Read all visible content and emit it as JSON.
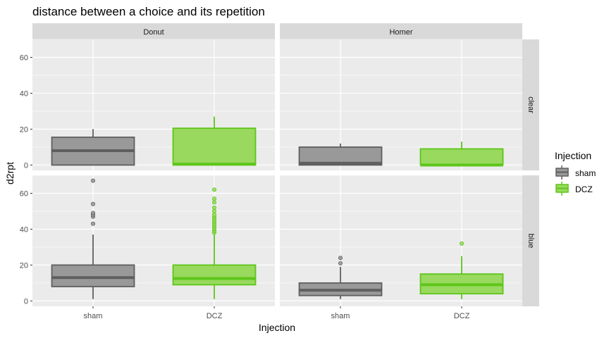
{
  "chart_data": {
    "type": "boxplot",
    "title": "distance between a choice and its repetition",
    "xlabel": "Injection",
    "ylabel": "d2rpt",
    "categories": [
      "sham",
      "DCZ"
    ],
    "ylim": [
      -3,
      70
    ],
    "yticks": [
      0,
      20,
      40,
      60
    ],
    "col_facets": [
      "Donut",
      "Homer"
    ],
    "row_facets": [
      "clear",
      "blue"
    ],
    "legend": {
      "title": "Injection",
      "placement": "right",
      "entries": [
        "sham",
        "DCZ"
      ]
    },
    "colors": {
      "sham_fill": "#999999",
      "sham_line": "#5f5f5f",
      "DCZ_fill": "#99d95e",
      "DCZ_line": "#5ec61a",
      "panel_bg": "#ebebeb",
      "grid": "#ffffff",
      "strip_bg": "#d9d9d9"
    },
    "panels": [
      {
        "col": "Donut",
        "row": "clear",
        "boxes": [
          {
            "category": "sham",
            "whisker_low": 0,
            "q1": 0,
            "median": 8,
            "q3": 15.5,
            "whisker_high": 20,
            "outliers": []
          },
          {
            "category": "DCZ",
            "whisker_low": 0,
            "q1": 0,
            "median": 0.5,
            "q3": 20.5,
            "whisker_high": 27,
            "outliers": []
          }
        ]
      },
      {
        "col": "Homer",
        "row": "clear",
        "boxes": [
          {
            "category": "sham",
            "whisker_low": 0,
            "q1": 0,
            "median": 1,
            "q3": 10,
            "whisker_high": 12,
            "outliers": []
          },
          {
            "category": "DCZ",
            "whisker_low": 0,
            "q1": 0,
            "median": 0,
            "q3": 9,
            "whisker_high": 13,
            "outliers": []
          }
        ]
      },
      {
        "col": "Donut",
        "row": "blue",
        "boxes": [
          {
            "category": "sham",
            "whisker_low": 1,
            "q1": 8,
            "median": 13,
            "q3": 20,
            "whisker_high": 37,
            "outliers": [
              43,
              47,
              48,
              49,
              54,
              67
            ]
          },
          {
            "category": "DCZ",
            "whisker_low": 1,
            "q1": 9,
            "median": 12.5,
            "q3": 20,
            "whisker_high": 37,
            "outliers": [
              38,
              39,
              40,
              41,
              42,
              43,
              44,
              45,
              46,
              47,
              48,
              50,
              52,
              55,
              57,
              62
            ]
          }
        ]
      },
      {
        "col": "Homer",
        "row": "blue",
        "boxes": [
          {
            "category": "sham",
            "whisker_low": 1,
            "q1": 3,
            "median": 6,
            "q3": 10,
            "whisker_high": 19,
            "outliers": [
              21,
              24
            ]
          },
          {
            "category": "DCZ",
            "whisker_low": 1,
            "q1": 4,
            "median": 9,
            "q3": 15,
            "whisker_high": 25,
            "outliers": [
              32
            ]
          }
        ]
      }
    ]
  }
}
